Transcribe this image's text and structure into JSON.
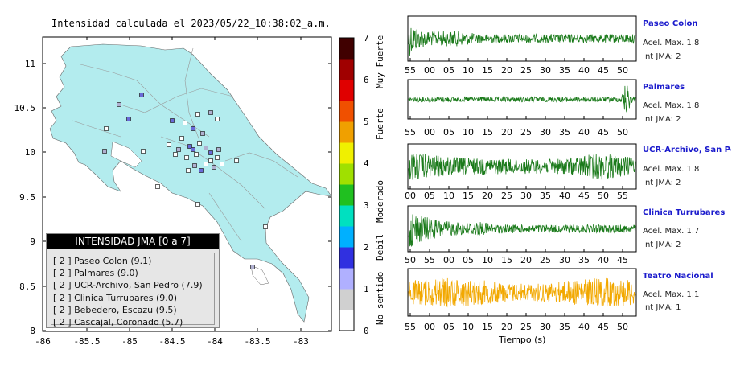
{
  "title": "Intensidad calculada el 2023/05/22_10:38:02_a.m.",
  "map": {
    "x_ticks": [
      "-86",
      "-85.5",
      "-85",
      "-84.5",
      "-84",
      "-83.5",
      "-83"
    ],
    "y_ticks": [
      "11",
      "10.5",
      "10",
      "9.5",
      "9",
      "8.5",
      "8"
    ],
    "land_color": "#b3ecee",
    "sea_color": "#ffffff",
    "station_count_note": ""
  },
  "legend": {
    "header": "INTENSIDAD JMA [0 a 7]",
    "rows": [
      "[ 2 ]  Paseo Colon (9.1)",
      "[ 2 ]  Palmares (9.0)",
      "[ 2 ]  UCR-Archivo, San Pedro (7.9)",
      "[ 2 ]  Clinica Turrubares (9.0)",
      "[ 2 ]  Bebedero, Escazu (9.5)",
      "[ 2 ]  Cascajal, Coronado (5.7)"
    ]
  },
  "colorbar": {
    "ticks": [
      "0",
      "1",
      "2",
      "3",
      "4",
      "5",
      "6",
      "7"
    ],
    "labels": [
      "No sentido",
      "Debil",
      "Moderado",
      "Fuerte",
      "Muy Fuerte"
    ]
  },
  "traces": [
    {
      "name": "Paseo Colon",
      "accel": "Acel. Max. 1.8",
      "int": "Int JMA: 2",
      "color": "#1a7a1a",
      "ticks": [
        "55",
        "00",
        "05",
        "10",
        "15",
        "20",
        "25",
        "30",
        "35",
        "40",
        "45",
        "50"
      ]
    },
    {
      "name": "Palmares",
      "accel": "Acel. Max. 1.8",
      "int": "Int JMA: 2",
      "color": "#1a7a1a",
      "ticks": [
        "55",
        "00",
        "05",
        "10",
        "15",
        "20",
        "25",
        "30",
        "35",
        "40",
        "45",
        "50"
      ]
    },
    {
      "name": "UCR-Archivo, San Pedro",
      "accel": "Acel. Max. 1.8",
      "int": "Int JMA: 2",
      "color": "#1a7a1a",
      "ticks": [
        "00",
        "05",
        "10",
        "15",
        "20",
        "25",
        "30",
        "35",
        "40",
        "45",
        "50",
        "55"
      ]
    },
    {
      "name": "Clinica Turrubares",
      "accel": "Acel. Max. 1.7",
      "int": "Int JMA: 2",
      "color": "#1a7a1a",
      "ticks": [
        "50",
        "55",
        "00",
        "05",
        "10",
        "15",
        "20",
        "25",
        "30",
        "35",
        "40",
        "45"
      ]
    },
    {
      "name": "Teatro Nacional",
      "accel": "Acel. Max. 1.1",
      "int": "Int JMA: 1",
      "color": "#f2a800",
      "ticks": [
        "55",
        "00",
        "05",
        "10",
        "15",
        "20",
        "25",
        "30",
        "35",
        "40",
        "45",
        "50"
      ]
    }
  ],
  "time_axis_label": "Tiempo (s)"
}
